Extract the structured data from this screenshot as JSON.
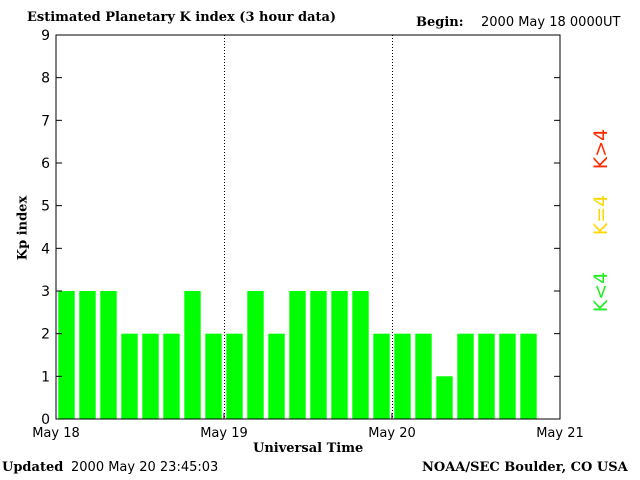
{
  "header": {
    "title": "Estimated Planetary K index (3 hour data)",
    "begin_label": "Begin:",
    "begin_value": "2000 May 18 0000UT"
  },
  "footer": {
    "updated_label": "Updated",
    "updated_value": "2000 May 20 23:45:03",
    "credit": "NOAA/SEC Boulder, CO USA"
  },
  "legend": [
    {
      "label": "K>4",
      "color": "#ff2a00"
    },
    {
      "label": "K=4",
      "color": "#ffd700"
    },
    {
      "label": "K<4",
      "color": "#22ee22"
    }
  ],
  "chart_data": {
    "type": "bar",
    "title": "Estimated Planetary K index (3 hour data)",
    "xlabel": "Universal Time",
    "ylabel": "Kp index",
    "ylim": [
      0,
      9
    ],
    "yticks": [
      "0",
      "1",
      "2",
      "3",
      "4",
      "5",
      "6",
      "7",
      "8",
      "9"
    ],
    "xticks": [
      "May 18",
      "May 19",
      "May 20",
      "May 21"
    ],
    "x_range_hours": [
      0,
      72
    ],
    "interval_hours": 3,
    "bar_color": "#00ff00",
    "values": [
      3,
      3,
      3,
      2,
      2,
      2,
      3,
      2,
      2,
      3,
      2,
      3,
      3,
      3,
      3,
      2,
      2,
      2,
      1,
      2,
      2,
      2,
      2
    ],
    "day_dividers": [
      "May 19",
      "May 20"
    ],
    "grid": false
  }
}
